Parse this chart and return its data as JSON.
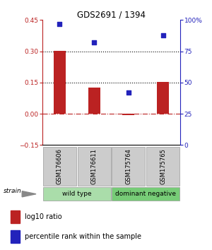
{
  "title": "GDS2691 / 1394",
  "samples": [
    "GSM176606",
    "GSM176611",
    "GSM175764",
    "GSM175765"
  ],
  "bar_values": [
    0.302,
    0.127,
    -0.005,
    0.152
  ],
  "scatter_values": [
    97,
    82,
    42,
    88
  ],
  "bar_color": "#bb2222",
  "scatter_color": "#2222bb",
  "ylim_left": [
    -0.15,
    0.45
  ],
  "ylim_right": [
    0,
    100
  ],
  "yticks_left": [
    -0.15,
    0,
    0.15,
    0.3,
    0.45
  ],
  "yticks_right": [
    0,
    25,
    50,
    75,
    100
  ],
  "ytick_labels_right": [
    "0",
    "25",
    "50",
    "75",
    "100%"
  ],
  "hlines": [
    0.15,
    0.3
  ],
  "groups": [
    {
      "label": "wild type",
      "samples": [
        0,
        1
      ],
      "color": "#aaddaa"
    },
    {
      "label": "dominant negative",
      "samples": [
        2,
        3
      ],
      "color": "#77cc77"
    }
  ],
  "strain_label": "strain",
  "legend_bar_label": "log10 ratio",
  "legend_scatter_label": "percentile rank within the sample",
  "bar_width": 0.35
}
